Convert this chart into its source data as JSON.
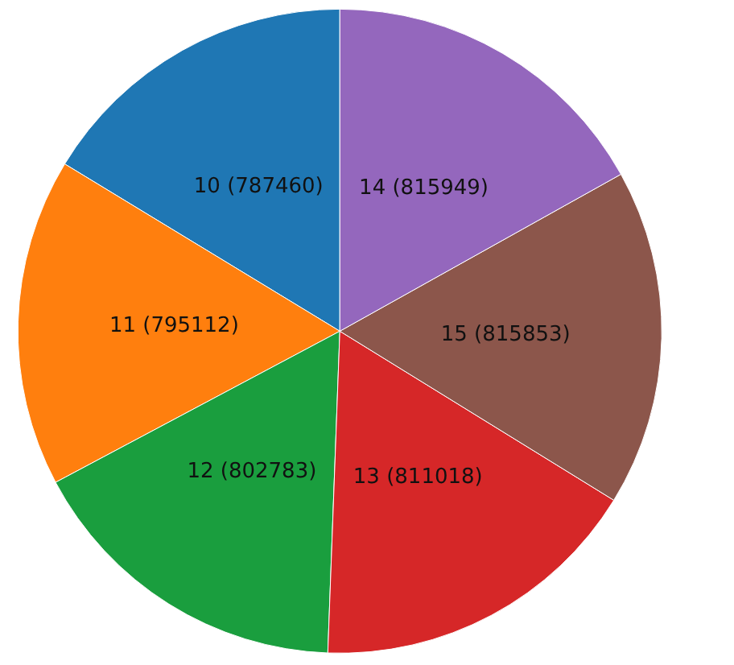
{
  "chart_data": {
    "type": "pie",
    "categories": [
      "10",
      "11",
      "12",
      "13",
      "15",
      "14"
    ],
    "values": [
      787460,
      795112,
      802783,
      811018,
      815853,
      815949
    ],
    "value_labels": [
      "(787460)",
      "(795112)",
      "(802783)",
      "(811018)",
      "(815853)",
      "(815949)"
    ],
    "colors": [
      "#1f77b4",
      "#ff7f0e",
      "#1a9e3e",
      "#d62728",
      "#8c564b",
      "#9467bd"
    ],
    "legend": false
  }
}
